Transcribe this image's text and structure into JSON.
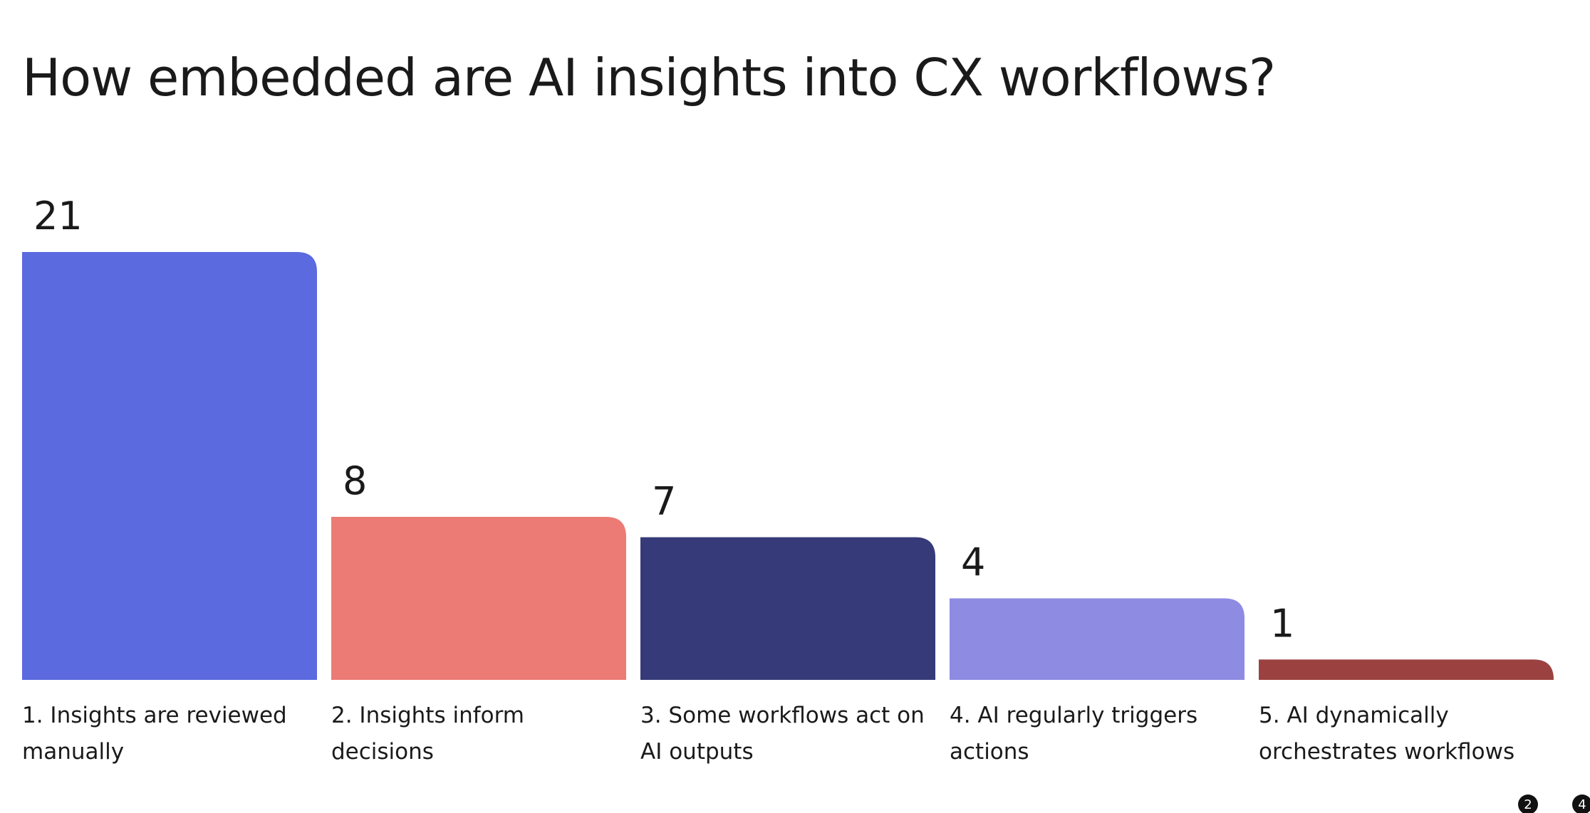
{
  "chart_data": {
    "type": "bar",
    "title": "How embedded are AI insights into CX workflows?",
    "categories": [
      "1. Insights are reviewed manually",
      "2. Insights inform decisions",
      "3. Some workflows act on AI outputs",
      "4. AI regularly triggers actions",
      "5. AI dynamically orchestrates workflows"
    ],
    "values": [
      21,
      8,
      7,
      4,
      1
    ],
    "colors": [
      "#5b6ade",
      "#ec7b75",
      "#363a78",
      "#8d8be2",
      "#9b4240"
    ]
  },
  "page_badges": [
    "2",
    "4"
  ]
}
